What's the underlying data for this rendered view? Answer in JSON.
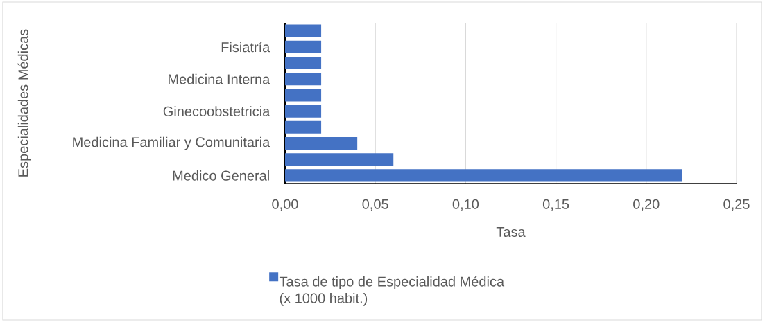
{
  "chart_data": {
    "type": "bar",
    "orientation": "horizontal",
    "categories": [
      null,
      "Fisiatría",
      null,
      "Medicina Interna",
      null,
      "Ginecoobstetricia",
      null,
      "Medicina Familiar y Comunitaria",
      null,
      "Medico General"
    ],
    "series": [
      {
        "name": "Tasa de tipo de Especialidad Médica (x 1000 habit.)",
        "color": "#4472c4",
        "values": [
          0.02,
          0.02,
          0.02,
          0.02,
          0.02,
          0.02,
          0.02,
          0.04,
          0.06,
          0.22
        ]
      }
    ],
    "xlabel": "Tasa",
    "ylabel": "Especialidades Médicas",
    "xlim": [
      0,
      0.25
    ],
    "xticks": [
      {
        "value": 0,
        "label": "0,00"
      },
      {
        "value": 0.05,
        "label": "0,05"
      },
      {
        "value": 0.1,
        "label": "0,10"
      },
      {
        "value": 0.15,
        "label": "0,15"
      },
      {
        "value": 0.2,
        "label": "0,20"
      },
      {
        "value": 0.25,
        "label": "0,25"
      }
    ],
    "grid": "x",
    "legend": "bottom"
  }
}
